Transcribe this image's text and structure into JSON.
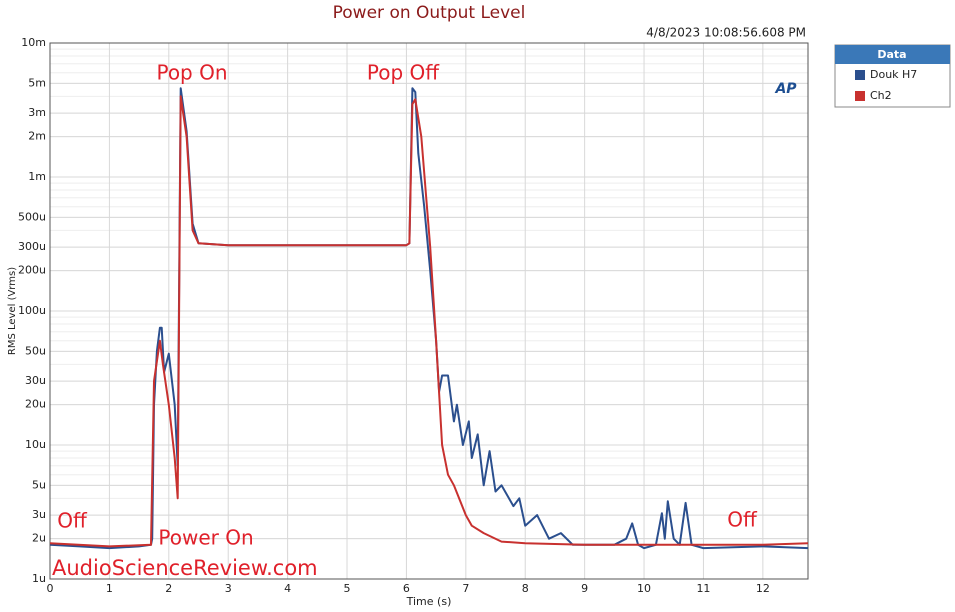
{
  "chart_data": {
    "type": "line",
    "title": "Power on Output Level",
    "timestamp": "4/8/2023 10:08:56.608 PM",
    "xlabel": "Time (s)",
    "ylabel": "RMS Level (Vrms)",
    "legend_title": "Data",
    "logo": "AP",
    "watermark": "AudioScienceReview.com",
    "log_y": true,
    "grid": true,
    "legend": "outside-right",
    "xlim": [
      0,
      12.76
    ],
    "ylim": [
      1e-06,
      0.01
    ],
    "xticks": [
      0,
      1,
      2,
      3,
      4,
      5,
      6,
      7,
      8,
      9,
      10,
      11,
      12
    ],
    "yticks": [
      {
        "value": 0.01,
        "label": "10m"
      },
      {
        "value": 0.005,
        "label": "5m"
      },
      {
        "value": 0.003,
        "label": "3m"
      },
      {
        "value": 0.002,
        "label": "2m"
      },
      {
        "value": 0.001,
        "label": "1m"
      },
      {
        "value": 0.0005,
        "label": "500u"
      },
      {
        "value": 0.0003,
        "label": "300u"
      },
      {
        "value": 0.0002,
        "label": "200u"
      },
      {
        "value": 0.0001,
        "label": "100u"
      },
      {
        "value": 5e-05,
        "label": "50u"
      },
      {
        "value": 3e-05,
        "label": "30u"
      },
      {
        "value": 2e-05,
        "label": "20u"
      },
      {
        "value": 1e-05,
        "label": "10u"
      },
      {
        "value": 5e-06,
        "label": "5u"
      },
      {
        "value": 3e-06,
        "label": "3u"
      },
      {
        "value": 2e-06,
        "label": "2u"
      },
      {
        "value": 1e-06,
        "label": "1u"
      }
    ],
    "annotations": [
      "Pop On",
      "Pop Off",
      "Off",
      "Power On",
      "Off"
    ],
    "series": [
      {
        "name": "Douk H7",
        "color": "#2b4f8e",
        "x": [
          0,
          0.5,
          1,
          1.5,
          1.7,
          1.72,
          1.75,
          1.8,
          1.85,
          1.88,
          1.92,
          2.0,
          2.1,
          2.15,
          2.2,
          2.3,
          2.4,
          2.5,
          3,
          4,
          5,
          6,
          6.05,
          6.1,
          6.15,
          6.2,
          6.3,
          6.4,
          6.5,
          6.55,
          6.6,
          6.7,
          6.8,
          6.85,
          6.95,
          7.05,
          7.1,
          7.2,
          7.3,
          7.4,
          7.5,
          7.6,
          7.8,
          7.9,
          8,
          8.2,
          8.4,
          8.6,
          8.8,
          9,
          9.5,
          9.7,
          9.8,
          9.9,
          10,
          10.2,
          10.3,
          10.35,
          10.4,
          10.5,
          10.6,
          10.7,
          10.8,
          11,
          12,
          12.76
        ],
        "values": [
          1.8e-06,
          1.75e-06,
          1.7e-06,
          1.75e-06,
          1.8e-06,
          2e-06,
          2e-05,
          5e-05,
          7.5e-05,
          7.5e-05,
          3.5e-05,
          4.8e-05,
          2e-05,
          7e-06,
          0.0046,
          0.0022,
          0.00045,
          0.00032,
          0.00031,
          0.00031,
          0.00031,
          0.00031,
          0.00032,
          0.0046,
          0.0043,
          0.0015,
          0.0006,
          0.0002,
          6e-05,
          2.5e-05,
          3.3e-05,
          3.3e-05,
          1.5e-05,
          2e-05,
          1e-05,
          1.5e-05,
          8e-06,
          1.2e-05,
          5e-06,
          9e-06,
          4.5e-06,
          5e-06,
          3.5e-06,
          4e-06,
          2.5e-06,
          3e-06,
          2e-06,
          2.2e-06,
          1.8e-06,
          1.8e-06,
          1.8e-06,
          2e-06,
          2.6e-06,
          1.8e-06,
          1.7e-06,
          1.8e-06,
          3.1e-06,
          2e-06,
          3.8e-06,
          2e-06,
          1.8e-06,
          3.7e-06,
          1.8e-06,
          1.7e-06,
          1.75e-06,
          1.7e-06
        ]
      },
      {
        "name": "Ch2",
        "color": "#c8312f",
        "x": [
          0,
          1,
          1.7,
          1.75,
          1.85,
          1.9,
          2.0,
          2.1,
          2.15,
          2.2,
          2.3,
          2.4,
          2.5,
          3,
          4,
          5,
          6,
          6.05,
          6.1,
          6.15,
          6.25,
          6.4,
          6.5,
          6.6,
          6.7,
          6.8,
          7,
          7.1,
          7.3,
          7.6,
          8,
          9,
          10,
          11,
          12,
          12.76
        ],
        "values": [
          1.85e-06,
          1.75e-06,
          1.8e-06,
          3e-05,
          6e-05,
          4e-05,
          2e-05,
          8e-06,
          4e-06,
          0.004,
          0.002,
          0.0004,
          0.00032,
          0.00031,
          0.00031,
          0.00031,
          0.00031,
          0.00032,
          0.0035,
          0.0038,
          0.002,
          0.0003,
          6e-05,
          1e-05,
          6e-06,
          5e-06,
          3e-06,
          2.5e-06,
          2.2e-06,
          1.9e-06,
          1.85e-06,
          1.8e-06,
          1.8e-06,
          1.8e-06,
          1.8e-06,
          1.85e-06
        ]
      }
    ]
  }
}
